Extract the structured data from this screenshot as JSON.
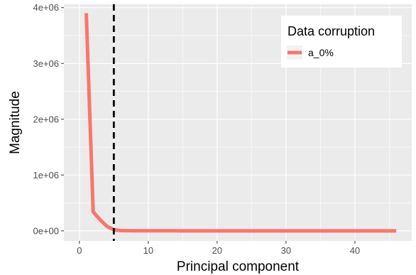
{
  "chart_data": {
    "type": "line",
    "xlabel": "Principal component",
    "ylabel": "Magnitude",
    "xlim": [
      -2.25,
      48.25
    ],
    "ylim": [
      -180000,
      4060000
    ],
    "x_ticks": [
      0,
      10,
      20,
      30,
      40
    ],
    "x_tick_labels": [
      "0",
      "10",
      "20",
      "30",
      "40"
    ],
    "y_ticks": [
      0,
      1000000,
      2000000,
      3000000,
      4000000
    ],
    "y_tick_labels": [
      "0e+00",
      "1e+06",
      "2e+06",
      "3e+06",
      "4e+06"
    ],
    "grid": true,
    "legend": {
      "title": "Data corruption",
      "position": "top-right"
    },
    "series": [
      {
        "name": "a_0%",
        "color": "#f8766d",
        "x": [
          1,
          2,
          3,
          4,
          5,
          6,
          7,
          8,
          9,
          10,
          11,
          12,
          13,
          14,
          15,
          16,
          17,
          18,
          19,
          20,
          21,
          22,
          23,
          24,
          25,
          26,
          27,
          28,
          29,
          30,
          31,
          32,
          33,
          34,
          35,
          36,
          37,
          38,
          39,
          40,
          41,
          42,
          43,
          44,
          45,
          46
        ],
        "y": [
          3900000,
          340000,
          200000,
          80000,
          20000,
          5000,
          3000,
          2000,
          1500,
          1200,
          1000,
          900,
          800,
          700,
          600,
          550,
          500,
          450,
          400,
          380,
          360,
          340,
          320,
          300,
          280,
          260,
          240,
          220,
          200,
          190,
          180,
          170,
          160,
          150,
          140,
          130,
          120,
          110,
          100,
          90,
          80,
          70,
          60,
          50,
          40,
          30
        ]
      }
    ],
    "annotations": [
      {
        "type": "vline",
        "x": 5,
        "style": "dashed",
        "color": "#000000"
      }
    ]
  }
}
